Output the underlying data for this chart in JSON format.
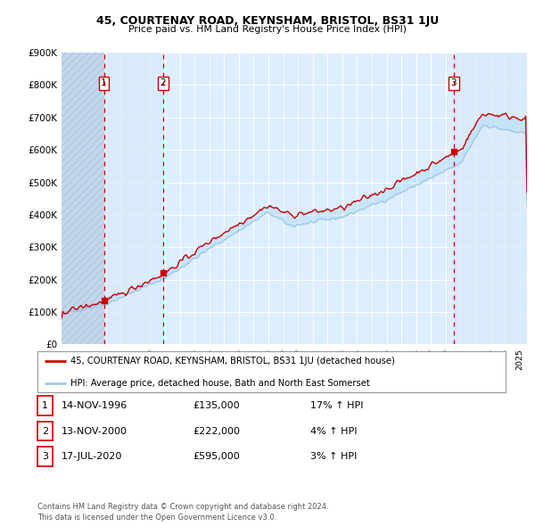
{
  "title1": "45, COURTENAY ROAD, KEYNSHAM, BRISTOL, BS31 1JU",
  "title2": "Price paid vs. HM Land Registry's House Price Index (HPI)",
  "ylim": [
    0,
    900000
  ],
  "yticks": [
    0,
    100000,
    200000,
    300000,
    400000,
    500000,
    600000,
    700000,
    800000,
    900000
  ],
  "ytick_labels": [
    "£0",
    "£100K",
    "£200K",
    "£300K",
    "£400K",
    "£500K",
    "£600K",
    "£700K",
    "£800K",
    "£900K"
  ],
  "xmin": 1994.0,
  "xmax": 2025.5,
  "sale_dates": [
    1996.87,
    2000.87,
    2020.54
  ],
  "sale_prices": [
    135000,
    222000,
    595000
  ],
  "sale_labels": [
    "1",
    "2",
    "3"
  ],
  "vline_color": "#cc0000",
  "hpi_line_color": "#a0c8e8",
  "price_line_color": "#cc0000",
  "plot_bg_color": "#ddeeff",
  "hatch_color": "#c0d4ec",
  "legend_label_price": "45, COURTENAY ROAD, KEYNSHAM, BRISTOL, BS31 1JU (detached house)",
  "legend_label_hpi": "HPI: Average price, detached house, Bath and North East Somerset",
  "table_rows": [
    [
      "1",
      "14-NOV-1996",
      "£135,000",
      "17% ↑ HPI"
    ],
    [
      "2",
      "13-NOV-2000",
      "£222,000",
      "4% ↑ HPI"
    ],
    [
      "3",
      "17-JUL-2020",
      "£595,000",
      "3% ↑ HPI"
    ]
  ],
  "footer": "Contains HM Land Registry data © Crown copyright and database right 2024.\nThis data is licensed under the Open Government Licence v3.0."
}
